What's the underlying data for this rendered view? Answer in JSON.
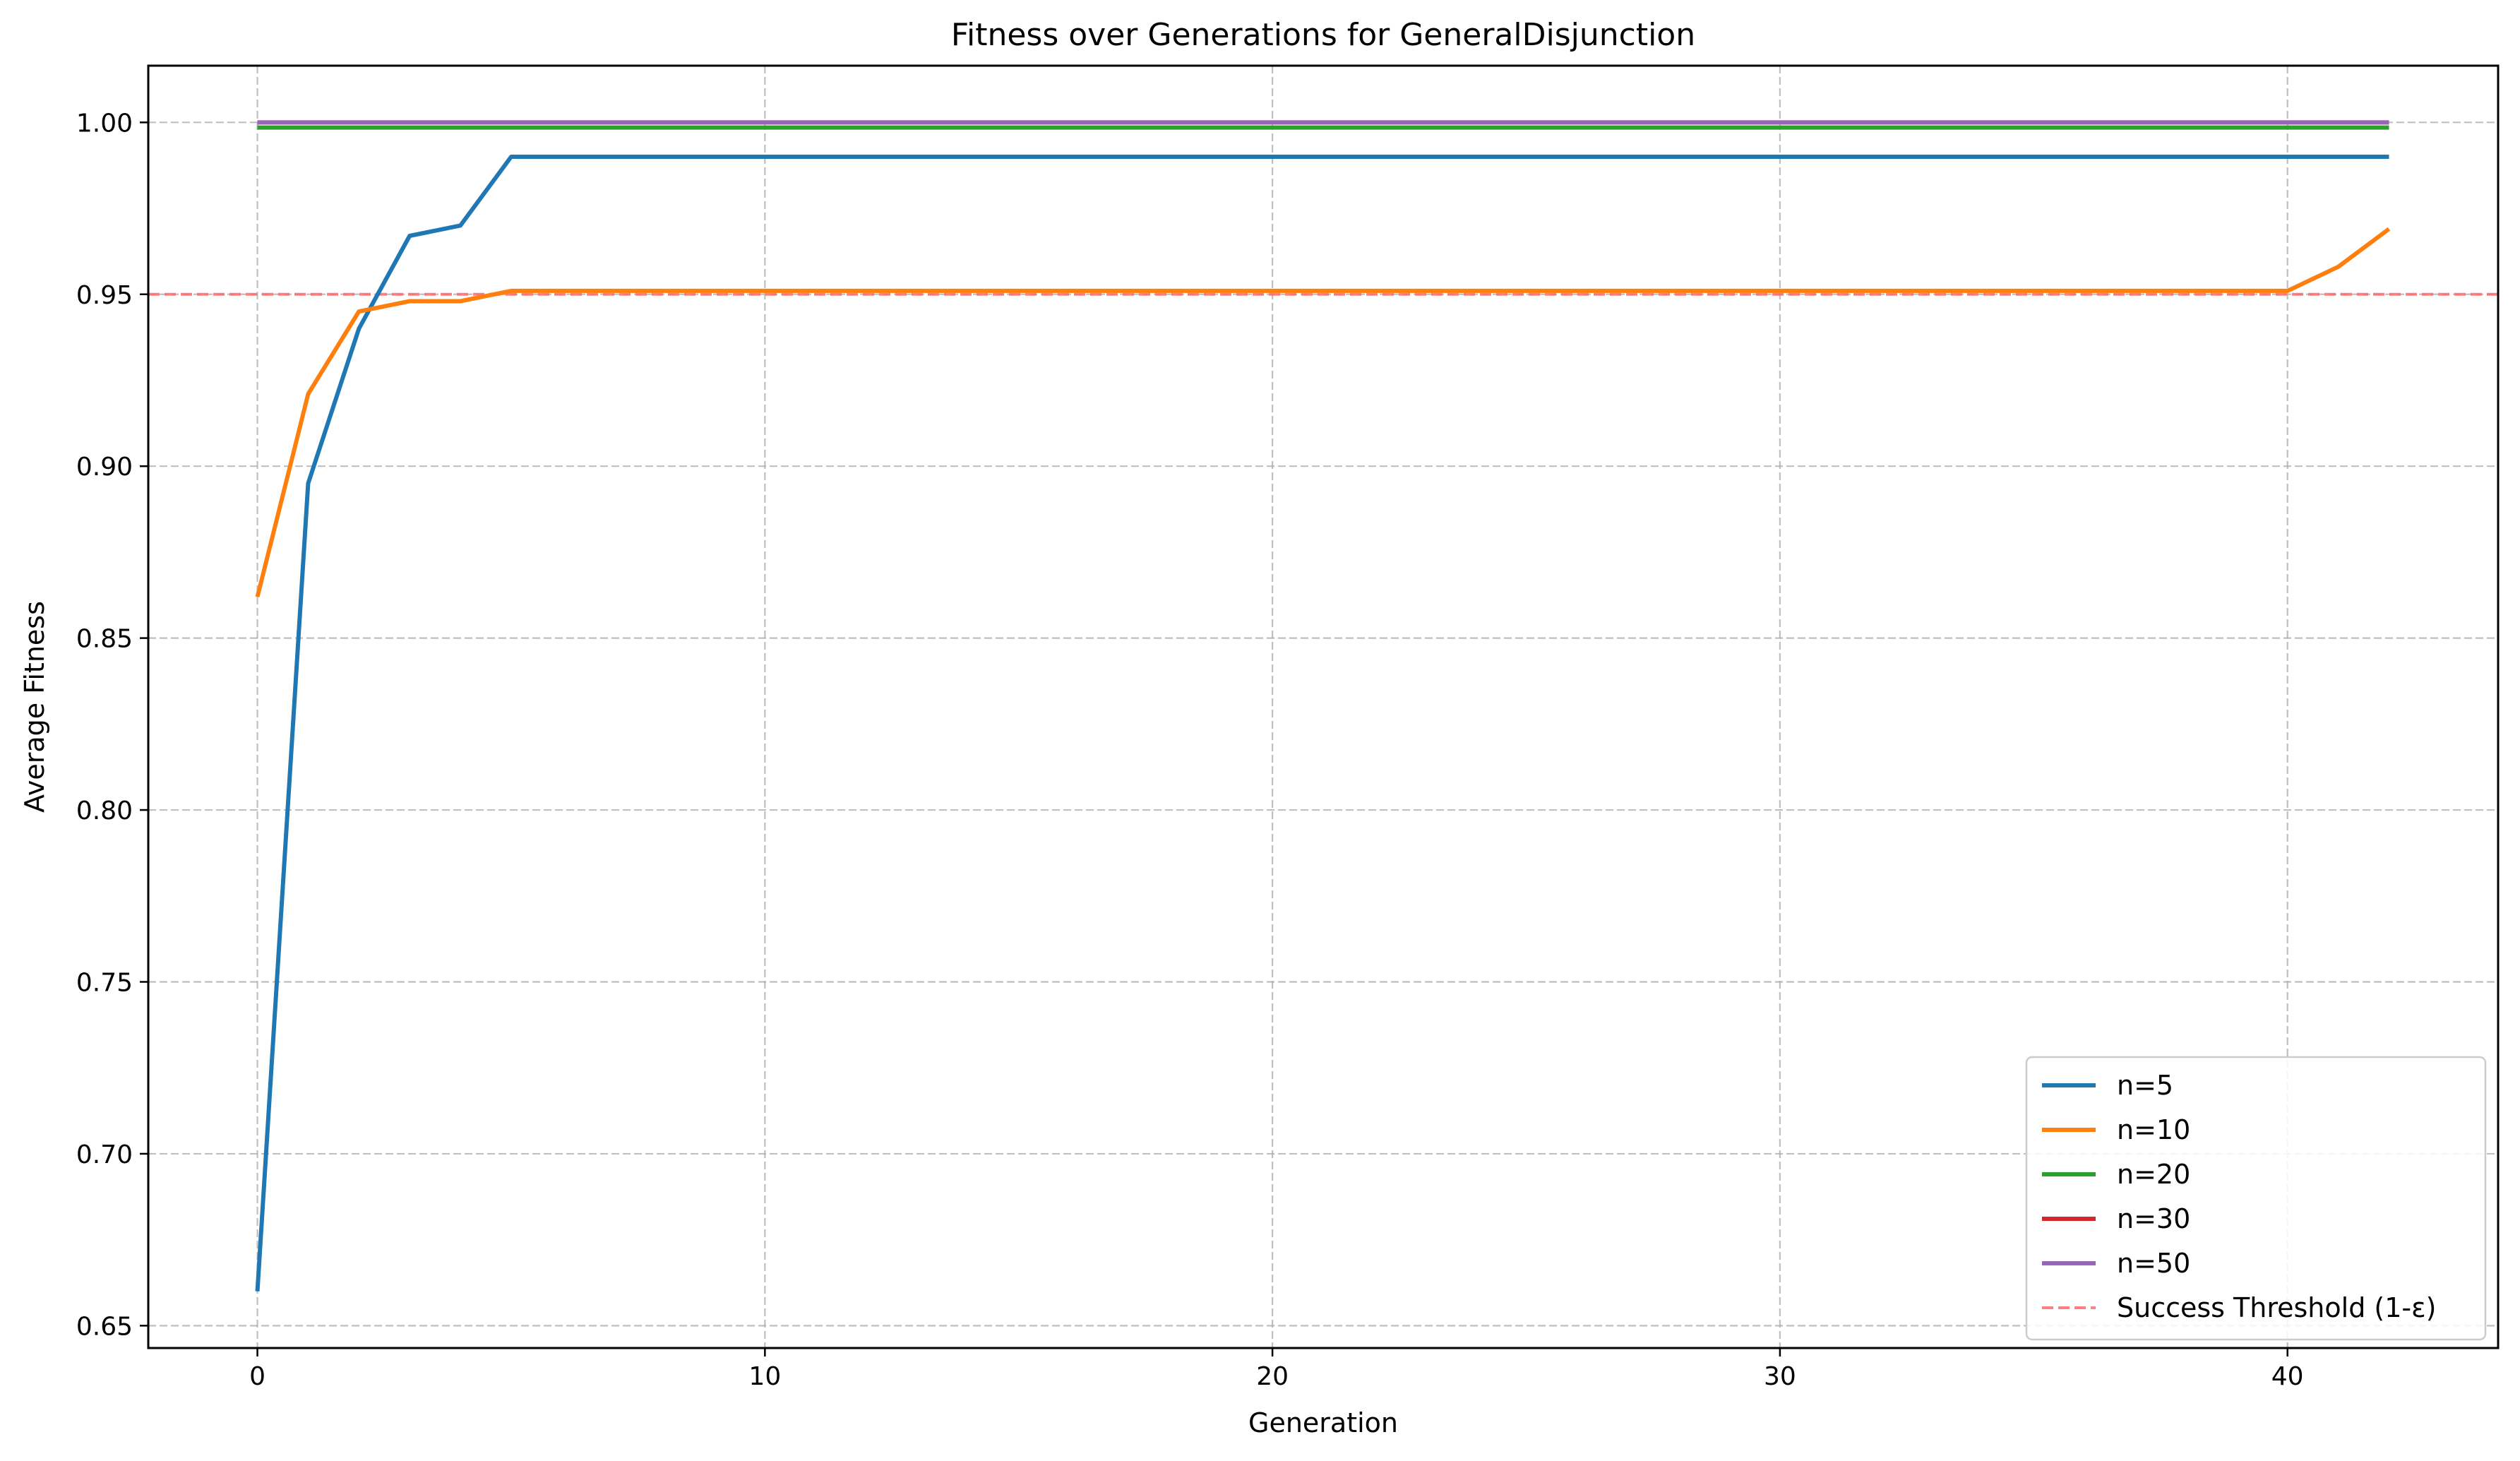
{
  "chart_data": {
    "type": "line",
    "title": "Fitness over Generations for GeneralDisjunction",
    "xlabel": "Generation",
    "ylabel": "Average Fitness",
    "xlim": [
      -2.15,
      44.15
    ],
    "ylim": [
      0.6435,
      1.0165
    ],
    "xticks": [
      0,
      10,
      20,
      30,
      40
    ],
    "xtick_labels": [
      "0",
      "10",
      "20",
      "30",
      "40"
    ],
    "yticks": [
      0.65,
      0.7,
      0.75,
      0.8,
      0.85,
      0.9,
      0.95,
      1.0
    ],
    "ytick_labels": [
      "0.65",
      "0.70",
      "0.75",
      "0.80",
      "0.85",
      "0.90",
      "0.95",
      "1.00"
    ],
    "grid": true,
    "legend_position": "lower-right",
    "series": [
      {
        "name": "n=5",
        "color": "#1f77b4",
        "x": [
          0,
          1,
          2,
          3,
          4,
          5,
          6,
          7,
          8,
          9,
          10,
          11,
          12,
          13,
          14,
          15,
          16,
          17,
          18,
          19,
          20,
          21,
          22,
          23,
          24,
          25,
          26,
          27,
          28,
          29,
          30,
          31,
          32,
          33,
          34,
          35,
          36,
          37,
          38,
          39,
          40,
          41,
          42
        ],
        "values": [
          0.66,
          0.895,
          0.94,
          0.967,
          0.97,
          0.99,
          0.99,
          0.99,
          0.99,
          0.99,
          0.99,
          0.99,
          0.99,
          0.99,
          0.99,
          0.99,
          0.99,
          0.99,
          0.99,
          0.99,
          0.99,
          0.99,
          0.99,
          0.99,
          0.99,
          0.99,
          0.99,
          0.99,
          0.99,
          0.99,
          0.99,
          0.99,
          0.99,
          0.99,
          0.99,
          0.99,
          0.99,
          0.99,
          0.99,
          0.99,
          0.99,
          0.99,
          0.99
        ]
      },
      {
        "name": "n=10",
        "color": "#ff7f0e",
        "x": [
          0,
          1,
          2,
          3,
          4,
          5,
          6,
          7,
          8,
          9,
          10,
          11,
          12,
          13,
          14,
          15,
          16,
          17,
          18,
          19,
          20,
          21,
          22,
          23,
          24,
          25,
          26,
          27,
          28,
          29,
          30,
          31,
          32,
          33,
          34,
          35,
          36,
          37,
          38,
          39,
          40,
          41,
          42
        ],
        "values": [
          0.862,
          0.921,
          0.945,
          0.948,
          0.948,
          0.951,
          0.951,
          0.951,
          0.951,
          0.951,
          0.951,
          0.951,
          0.951,
          0.951,
          0.951,
          0.951,
          0.951,
          0.951,
          0.951,
          0.951,
          0.951,
          0.951,
          0.951,
          0.951,
          0.951,
          0.951,
          0.951,
          0.951,
          0.951,
          0.951,
          0.951,
          0.951,
          0.951,
          0.951,
          0.951,
          0.951,
          0.951,
          0.951,
          0.951,
          0.951,
          0.951,
          0.958,
          0.969
        ]
      },
      {
        "name": "n=20",
        "color": "#2ca02c",
        "x": [
          0,
          42
        ],
        "values": [
          0.9985,
          0.9985
        ]
      },
      {
        "name": "n=30",
        "color": "#d62728",
        "x": [
          0,
          42
        ],
        "values": [
          1.0,
          1.0
        ]
      },
      {
        "name": "n=50",
        "color": "#9467bd",
        "x": [
          0,
          42
        ],
        "values": [
          1.0,
          1.0
        ]
      }
    ],
    "threshold": {
      "name": "Success Threshold (1-ε)",
      "value": 0.95,
      "color": "#ff6b6b",
      "style": "dashed"
    }
  }
}
